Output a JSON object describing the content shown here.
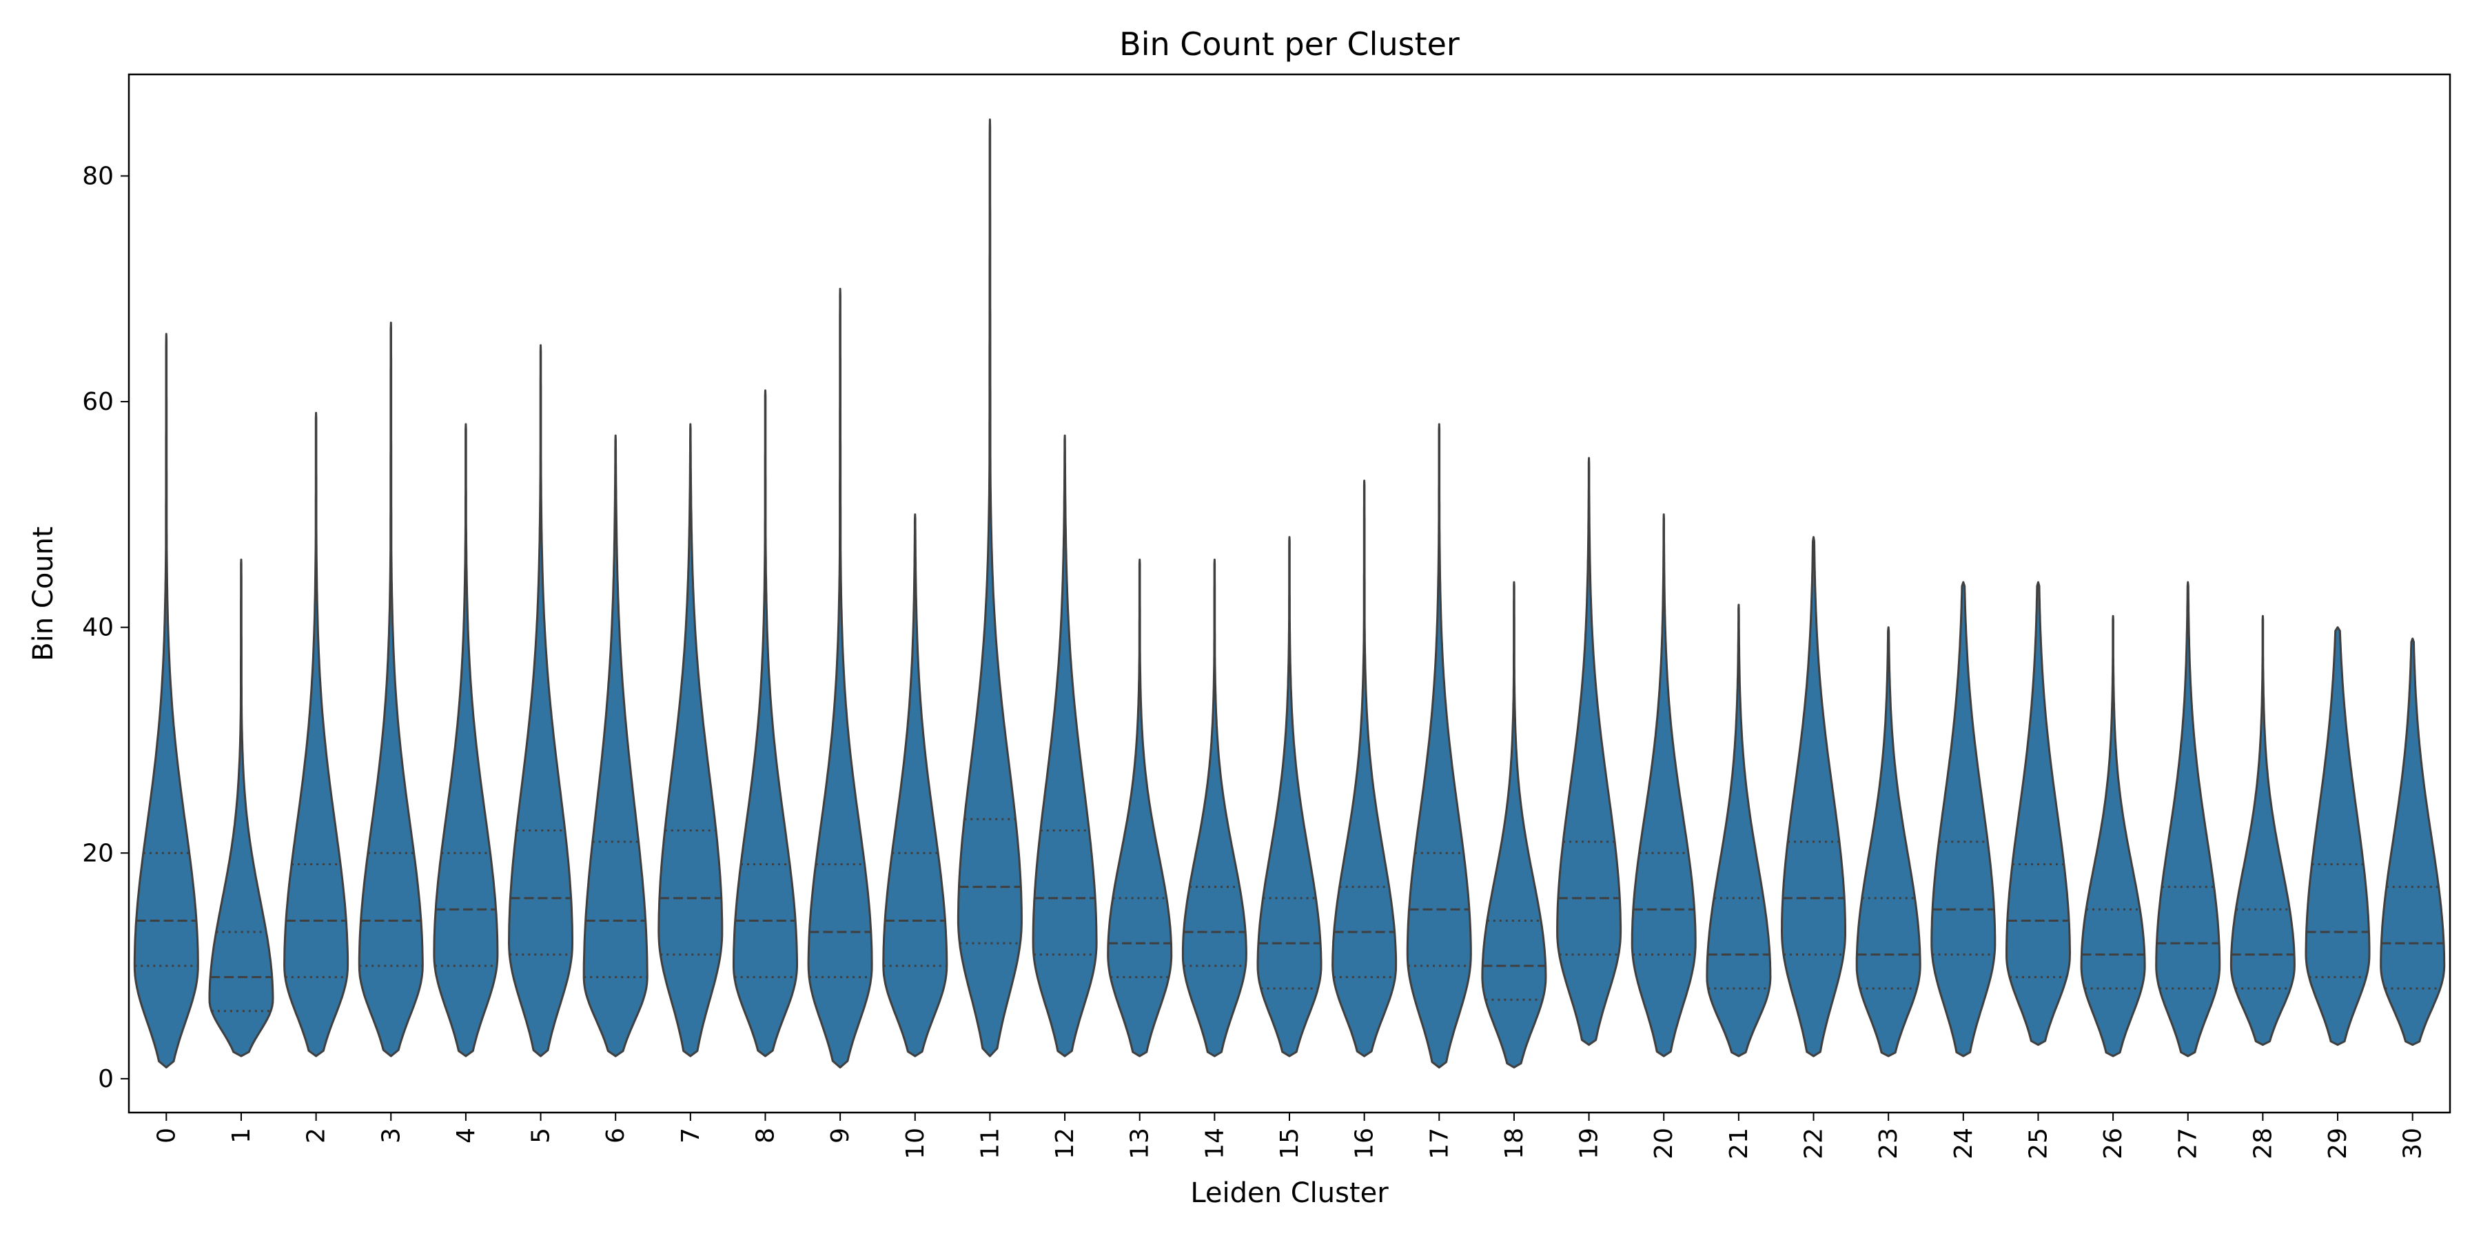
{
  "chart_data": {
    "type": "violin",
    "title": "Bin Count per Cluster",
    "xlabel": "Leiden Cluster",
    "ylabel": "Bin Count",
    "ylim": [
      -3,
      89
    ],
    "yticks": [
      0,
      20,
      40,
      60,
      80
    ],
    "grid": false,
    "legend": "none",
    "inner": "quartile",
    "colors": {
      "fill": "#3274a1",
      "edge": "#3f3f3f",
      "axis": "#000000"
    },
    "categories": [
      "0",
      "1",
      "2",
      "3",
      "4",
      "5",
      "6",
      "7",
      "8",
      "9",
      "10",
      "11",
      "12",
      "13",
      "14",
      "15",
      "16",
      "17",
      "18",
      "19",
      "20",
      "21",
      "22",
      "23",
      "24",
      "25",
      "26",
      "27",
      "28",
      "29",
      "30"
    ],
    "violins": [
      {
        "cluster": "0",
        "min": 1,
        "q1": 10,
        "median": 14,
        "q3": 20,
        "max": 66,
        "mode": 10
      },
      {
        "cluster": "1",
        "min": 2,
        "q1": 6,
        "median": 9,
        "q3": 13,
        "max": 46,
        "mode": 7
      },
      {
        "cluster": "2",
        "min": 2,
        "q1": 9,
        "median": 14,
        "q3": 19,
        "max": 59,
        "mode": 10
      },
      {
        "cluster": "3",
        "min": 2,
        "q1": 10,
        "median": 14,
        "q3": 20,
        "max": 67,
        "mode": 10
      },
      {
        "cluster": "4",
        "min": 2,
        "q1": 10,
        "median": 15,
        "q3": 20,
        "max": 58,
        "mode": 11
      },
      {
        "cluster": "5",
        "min": 2,
        "q1": 11,
        "median": 16,
        "q3": 22,
        "max": 65,
        "mode": 12
      },
      {
        "cluster": "6",
        "min": 2,
        "q1": 9,
        "median": 14,
        "q3": 21,
        "max": 57,
        "mode": 9
      },
      {
        "cluster": "7",
        "min": 2,
        "q1": 11,
        "median": 16,
        "q3": 22,
        "max": 58,
        "mode": 13
      },
      {
        "cluster": "8",
        "min": 2,
        "q1": 9,
        "median": 14,
        "q3": 19,
        "max": 61,
        "mode": 10
      },
      {
        "cluster": "9",
        "min": 1,
        "q1": 9,
        "median": 13,
        "q3": 19,
        "max": 70,
        "mode": 10
      },
      {
        "cluster": "10",
        "min": 2,
        "q1": 10,
        "median": 14,
        "q3": 20,
        "max": 50,
        "mode": 10
      },
      {
        "cluster": "11",
        "min": 2,
        "q1": 12,
        "median": 17,
        "q3": 23,
        "max": 85,
        "mode": 14
      },
      {
        "cluster": "12",
        "min": 2,
        "q1": 11,
        "median": 16,
        "q3": 22,
        "max": 57,
        "mode": 12
      },
      {
        "cluster": "13",
        "min": 2,
        "q1": 9,
        "median": 12,
        "q3": 16,
        "max": 46,
        "mode": 11
      },
      {
        "cluster": "14",
        "min": 2,
        "q1": 10,
        "median": 13,
        "q3": 17,
        "max": 46,
        "mode": 11
      },
      {
        "cluster": "15",
        "min": 2,
        "q1": 8,
        "median": 12,
        "q3": 16,
        "max": 48,
        "mode": 10
      },
      {
        "cluster": "16",
        "min": 2,
        "q1": 9,
        "median": 13,
        "q3": 17,
        "max": 53,
        "mode": 10
      },
      {
        "cluster": "17",
        "min": 1,
        "q1": 10,
        "median": 15,
        "q3": 20,
        "max": 58,
        "mode": 11
      },
      {
        "cluster": "18",
        "min": 1,
        "q1": 7,
        "median": 10,
        "q3": 14,
        "max": 44,
        "mode": 9
      },
      {
        "cluster": "19",
        "min": 3,
        "q1": 11,
        "median": 16,
        "q3": 21,
        "max": 55,
        "mode": 13
      },
      {
        "cluster": "20",
        "min": 2,
        "q1": 11,
        "median": 15,
        "q3": 20,
        "max": 50,
        "mode": 12
      },
      {
        "cluster": "21",
        "min": 2,
        "q1": 8,
        "median": 11,
        "q3": 16,
        "max": 42,
        "mode": 9
      },
      {
        "cluster": "22",
        "min": 2,
        "q1": 11,
        "median": 16,
        "q3": 21,
        "max": 48,
        "mode": 13
      },
      {
        "cluster": "23",
        "min": 2,
        "q1": 8,
        "median": 11,
        "q3": 16,
        "max": 40,
        "mode": 10
      },
      {
        "cluster": "24",
        "min": 2,
        "q1": 11,
        "median": 15,
        "q3": 21,
        "max": 44,
        "mode": 12
      },
      {
        "cluster": "25",
        "min": 3,
        "q1": 9,
        "median": 14,
        "q3": 19,
        "max": 44,
        "mode": 11
      },
      {
        "cluster": "26",
        "min": 2,
        "q1": 8,
        "median": 11,
        "q3": 15,
        "max": 41,
        "mode": 10
      },
      {
        "cluster": "27",
        "min": 2,
        "q1": 8,
        "median": 12,
        "q3": 17,
        "max": 44,
        "mode": 10
      },
      {
        "cluster": "28",
        "min": 3,
        "q1": 8,
        "median": 11,
        "q3": 15,
        "max": 41,
        "mode": 10
      },
      {
        "cluster": "29",
        "min": 3,
        "q1": 9,
        "median": 13,
        "q3": 19,
        "max": 40,
        "mode": 11
      },
      {
        "cluster": "30",
        "min": 3,
        "q1": 8,
        "median": 12,
        "q3": 17,
        "max": 39,
        "mode": 10
      }
    ]
  }
}
